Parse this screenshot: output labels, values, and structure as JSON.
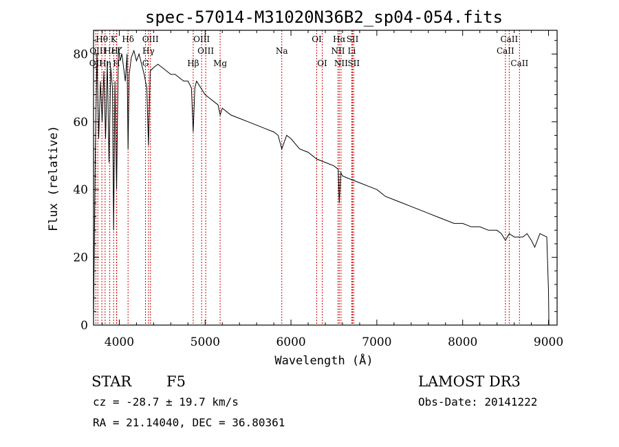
{
  "chart_data": {
    "type": "line",
    "title": "spec-57014-M31020N36B2_sp04-054.fits",
    "xlabel": "Wavelength (Å)",
    "ylabel": "Flux (relative)",
    "xlim": [
      3700,
      9100
    ],
    "ylim": [
      0,
      87
    ],
    "xticks": [
      4000,
      5000,
      6000,
      7000,
      8000,
      9000
    ],
    "yticks": [
      0,
      20,
      40,
      60,
      80
    ],
    "series": [
      {
        "name": "spectrum",
        "x": [
          3700,
          3720,
          3740,
          3760,
          3780,
          3800,
          3820,
          3840,
          3860,
          3880,
          3900,
          3920,
          3934,
          3950,
          3968,
          3990,
          4010,
          4030,
          4050,
          4070,
          4090,
          4102,
          4115,
          4140,
          4170,
          4200,
          4230,
          4260,
          4290,
          4320,
          4340,
          4360,
          4400,
          4450,
          4500,
          4550,
          4600,
          4650,
          4700,
          4750,
          4800,
          4840,
          4861,
          4880,
          4900,
          4950,
          5000,
          5050,
          5100,
          5150,
          5175,
          5200,
          5300,
          5400,
          5500,
          5600,
          5700,
          5800,
          5850,
          5893,
          5950,
          6000,
          6100,
          6200,
          6300,
          6400,
          6500,
          6550,
          6563,
          6580,
          6600,
          6700,
          6800,
          6900,
          7000,
          7100,
          7200,
          7300,
          7400,
          7500,
          7600,
          7700,
          7800,
          7900,
          8000,
          8100,
          8200,
          8300,
          8400,
          8450,
          8498,
          8542,
          8600,
          8662,
          8700,
          8750,
          8800,
          8840,
          8900,
          8980,
          9000,
          9005
        ],
        "values": [
          2,
          50,
          80,
          55,
          72,
          60,
          75,
          55,
          78,
          48,
          76,
          70,
          28,
          72,
          40,
          82,
          78,
          80,
          76,
          72,
          80,
          52,
          74,
          79,
          81,
          78,
          80,
          77,
          74,
          70,
          53,
          75,
          76,
          77,
          76,
          75,
          74,
          74,
          73,
          72,
          72,
          70,
          57,
          70,
          72,
          70,
          68,
          67,
          66,
          65,
          62,
          64,
          62,
          61,
          60,
          59,
          58,
          57,
          56,
          52,
          56,
          55,
          52,
          51,
          49,
          48,
          47,
          46,
          36,
          45,
          44,
          43,
          42,
          41,
          40,
          38,
          37,
          36,
          35,
          34,
          33,
          32,
          31,
          30,
          30,
          29,
          29,
          28,
          28,
          27,
          25,
          27,
          26,
          26,
          26,
          27,
          25,
          23,
          27,
          26,
          10,
          0
        ]
      }
    ],
    "line_markers": [
      {
        "label": "OII",
        "wavelength": 3727,
        "row": 3
      },
      {
        "label": "Hθ",
        "wavelength": 3797,
        "row": 1
      },
      {
        "label": "OIII",
        "wavelength": 3750,
        "row": 2
      },
      {
        "label": "Hη",
        "wavelength": 3835,
        "row": 3
      },
      {
        "label": "K",
        "wavelength": 3934,
        "row": 1
      },
      {
        "label": "Hε",
        "wavelength": 3889,
        "row": 2
      },
      {
        "label": "H",
        "wavelength": 3968,
        "row": 3
      },
      {
        "label": "Hδ",
        "wavelength": 4102,
        "row": 1
      },
      {
        "label": "Hζ",
        "wavelength": 3970,
        "row": 2
      },
      {
        "label": "G",
        "wavelength": 4305,
        "row": 3
      },
      {
        "label": "OIII",
        "wavelength": 4363,
        "row": 1
      },
      {
        "label": "Hγ",
        "wavelength": 4340,
        "row": 2
      },
      {
        "label": "Hβ",
        "wavelength": 4861,
        "row": 3
      },
      {
        "label": "OIII",
        "wavelength": 4959,
        "row": 1
      },
      {
        "label": "OIII",
        "wavelength": 5007,
        "row": 2
      },
      {
        "label": "Mg",
        "wavelength": 5175,
        "row": 3
      },
      {
        "label": "Na",
        "wavelength": 5893,
        "row": 2
      },
      {
        "label": "OI",
        "wavelength": 6300,
        "row": 1
      },
      {
        "label": "OI",
        "wavelength": 6364,
        "row": 3
      },
      {
        "label": "Hα",
        "wavelength": 6563,
        "row": 1
      },
      {
        "label": "NII",
        "wavelength": 6548,
        "row": 2
      },
      {
        "label": "NII",
        "wavelength": 6583,
        "row": 3
      },
      {
        "label": "SII",
        "wavelength": 6717,
        "row": 1
      },
      {
        "label": "Li",
        "wavelength": 6708,
        "row": 2
      },
      {
        "label": "SII",
        "wavelength": 6731,
        "row": 3
      },
      {
        "label": "CaII",
        "wavelength": 8542,
        "row": 1
      },
      {
        "label": "CaII",
        "wavelength": 8498,
        "row": 2
      },
      {
        "label": "CaII",
        "wavelength": 8662,
        "row": 3
      }
    ]
  },
  "info": {
    "object_class": "STAR",
    "subclass": "F5",
    "survey": "LAMOST DR3",
    "cz": "cz = -28.7 ± 19.7 km/s",
    "obs_date": "Obs-Date: 20141222",
    "coords": "RA =  21.14040, DEC =  36.80361"
  },
  "colors": {
    "marker_line": "#cc0000",
    "spectrum": "#000000",
    "axis": "#000000"
  }
}
